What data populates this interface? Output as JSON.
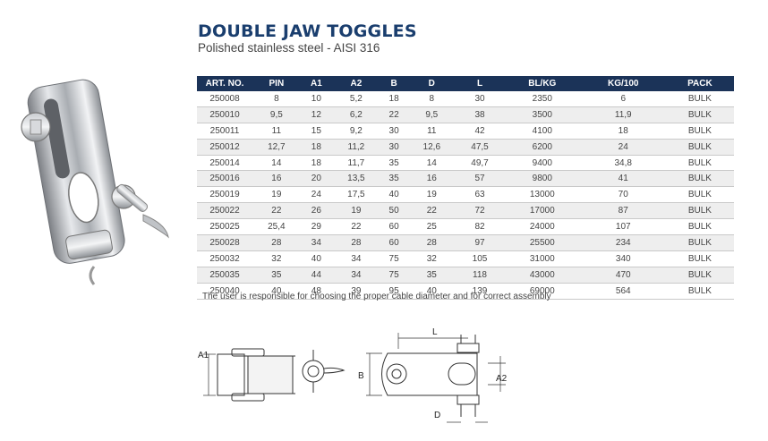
{
  "title": "DOUBLE JAW TOGGLES",
  "subtitle": "Polished stainless steel - AISI 316",
  "table": {
    "headers": [
      "ART. NO.",
      "PIN",
      "A1",
      "A2",
      "B",
      "D",
      "L",
      "BL/KG",
      "KG/100",
      "PACK"
    ],
    "rows": [
      [
        "250008",
        "8",
        "10",
        "5,2",
        "18",
        "8",
        "30",
        "2350",
        "6",
        "BULK"
      ],
      [
        "250010",
        "9,5",
        "12",
        "6,2",
        "22",
        "9,5",
        "38",
        "3500",
        "11,9",
        "BULK"
      ],
      [
        "250011",
        "11",
        "15",
        "9,2",
        "30",
        "11",
        "42",
        "4100",
        "18",
        "BULK"
      ],
      [
        "250012",
        "12,7",
        "18",
        "11,2",
        "30",
        "12,6",
        "47,5",
        "6200",
        "24",
        "BULK"
      ],
      [
        "250014",
        "14",
        "18",
        "11,7",
        "35",
        "14",
        "49,7",
        "9400",
        "34,8",
        "BULK"
      ],
      [
        "250016",
        "16",
        "20",
        "13,5",
        "35",
        "16",
        "57",
        "9800",
        "41",
        "BULK"
      ],
      [
        "250019",
        "19",
        "24",
        "17,5",
        "40",
        "19",
        "63",
        "13000",
        "70",
        "BULK"
      ],
      [
        "250022",
        "22",
        "26",
        "19",
        "50",
        "22",
        "72",
        "17000",
        "87",
        "BULK"
      ],
      [
        "250025",
        "25,4",
        "29",
        "22",
        "60",
        "25",
        "82",
        "24000",
        "107",
        "BULK"
      ],
      [
        "250028",
        "28",
        "34",
        "28",
        "60",
        "28",
        "97",
        "25500",
        "234",
        "BULK"
      ],
      [
        "250032",
        "32",
        "40",
        "34",
        "75",
        "32",
        "105",
        "31000",
        "340",
        "BULK"
      ],
      [
        "250035",
        "35",
        "44",
        "34",
        "75",
        "35",
        "118",
        "43000",
        "470",
        "BULK"
      ],
      [
        "250040",
        "40",
        "48",
        "39",
        "95",
        "40",
        "139",
        "69000",
        "564",
        "BULK"
      ]
    ]
  },
  "note": "The user is responsible for choosing the proper cable diameter and for correct assembly",
  "diagram": {
    "label_a1": "A1",
    "label_b": "B",
    "label_l": "L",
    "label_a2": "A2",
    "label_d": "D"
  }
}
